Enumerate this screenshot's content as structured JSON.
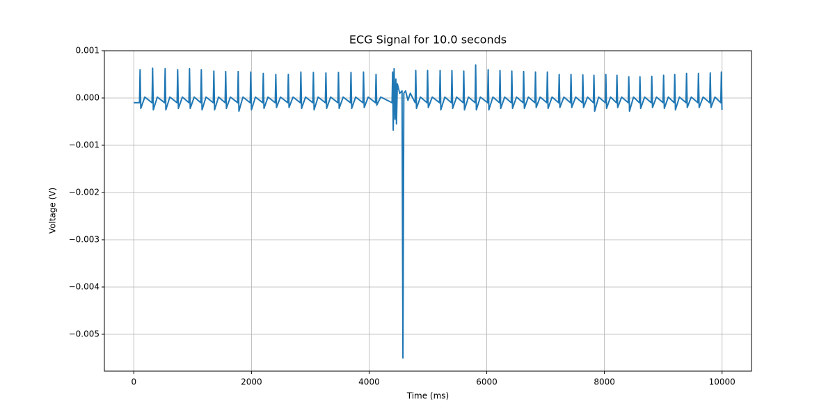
{
  "chart_data": {
    "type": "line",
    "title": "ECG Signal for 10.0 seconds",
    "xlabel": "Time (ms)",
    "ylabel": "Voltage (V)",
    "x": [
      0,
      97,
      107,
      119,
      187,
      310,
      320,
      332,
      400,
      523,
      533,
      545,
      613,
      736,
      746,
      758,
      826,
      937,
      947,
      959,
      1027,
      1138,
      1148,
      1160,
      1228,
      1351,
      1361,
      1373,
      1441,
      1552,
      1562,
      1574,
      1642,
      1765,
      1775,
      1787,
      1855,
      1978,
      1988,
      2000,
      2068,
      2191,
      2201,
      2213,
      2281,
      2404,
      2414,
      2426,
      2494,
      2617,
      2627,
      2639,
      2707,
      2830,
      2840,
      2852,
      2920,
      3043,
      3053,
      3065,
      3133,
      3256,
      3266,
      3278,
      3346,
      3469,
      3479,
      3491,
      3559,
      3682,
      3692,
      3704,
      3772,
      3895,
      3905,
      3917,
      3985,
      4108,
      4118,
      4130,
      4198,
      4390,
      4400,
      4410,
      4425,
      4440,
      4455,
      4465,
      4480,
      4520,
      4560,
      4575,
      4590,
      4620,
      4660,
      4700,
      4783,
      4793,
      4805,
      4873,
      4984,
      4994,
      5006,
      5074,
      5197,
      5207,
      5219,
      5287,
      5398,
      5408,
      5420,
      5488,
      5599,
      5609,
      5621,
      5689,
      5801,
      5811,
      5823,
      5891,
      6014,
      6024,
      6036,
      6104,
      6215,
      6225,
      6237,
      6305,
      6416,
      6426,
      6438,
      6506,
      6617,
      6627,
      6639,
      6707,
      6818,
      6828,
      6840,
      6908,
      7020,
      7030,
      7042,
      7110,
      7221,
      7231,
      7243,
      7311,
      7422,
      7432,
      7444,
      7512,
      7623,
      7633,
      7645,
      7713,
      7812,
      7822,
      7834,
      7902,
      8014,
      8024,
      8036,
      8104,
      8203,
      8213,
      8225,
      8293,
      8404,
      8414,
      8426,
      8494,
      8594,
      8604,
      8616,
      8684,
      8795,
      8805,
      8817,
      8885,
      8996,
      9006,
      9018,
      9086,
      9185,
      9195,
      9207,
      9275,
      9386,
      9396,
      9408,
      9476,
      9588,
      9598,
      9610,
      9678,
      9789,
      9799,
      9811,
      9879,
      9978,
      9988,
      9998
    ],
    "series": [
      {
        "color": "#1f77b4",
        "values": [
          -0.0001,
          -0.0001,
          0.0006,
          -0.00022,
          2e-05,
          -0.0001,
          0.00063,
          -0.00025,
          2e-05,
          -0.0001,
          0.00062,
          -0.00025,
          2e-05,
          -0.0001,
          0.0006,
          -0.00022,
          2e-05,
          -0.0001,
          0.00062,
          -0.00022,
          2e-05,
          -0.0001,
          0.0006,
          -0.00025,
          2e-05,
          -0.0001,
          0.00057,
          -0.00025,
          2e-05,
          -0.0001,
          0.00056,
          -0.00022,
          2e-05,
          -0.0001,
          0.00056,
          -0.00028,
          2e-05,
          -0.0001,
          0.00055,
          -0.00025,
          2e-05,
          -0.0001,
          0.00052,
          -0.00022,
          2e-05,
          -0.0001,
          0.0005,
          -0.0002,
          2e-05,
          -0.0001,
          0.0005,
          -0.0002,
          2e-05,
          -0.0001,
          0.00055,
          -0.00022,
          2e-05,
          -0.0001,
          0.00054,
          -0.00025,
          2e-05,
          -0.0001,
          0.00053,
          -0.00022,
          2e-05,
          -0.0001,
          0.00054,
          -0.00022,
          2e-05,
          -0.0001,
          0.00054,
          -0.00022,
          2e-05,
          -0.0001,
          0.00055,
          -0.0002,
          2e-05,
          -0.0001,
          0.0005,
          -0.00015,
          2e-05,
          -0.0001,
          0.00055,
          -0.00068,
          0.00062,
          -0.00045,
          0.0004,
          -0.00055,
          0.0003,
          0.0001,
          0.00015,
          -0.0055,
          0.0001,
          0.00015,
          -5e-05,
          0.0001,
          -0.0001,
          0.00058,
          -0.00022,
          2e-05,
          -0.0001,
          0.00058,
          -0.0002,
          2e-05,
          -0.0001,
          0.00058,
          -0.00025,
          2e-05,
          -0.0001,
          0.00058,
          -0.00022,
          2e-05,
          -0.0001,
          0.00057,
          -0.00025,
          2e-05,
          -0.0001,
          0.0007,
          -0.00025,
          2e-05,
          -0.0001,
          0.0006,
          -0.00025,
          2e-05,
          -0.0001,
          0.00058,
          -0.00022,
          2e-05,
          -0.0001,
          0.00057,
          -0.00022,
          2e-05,
          -0.0001,
          0.00056,
          -0.00022,
          2e-05,
          -0.0001,
          0.00055,
          -0.0002,
          2e-05,
          -0.0001,
          0.00055,
          -0.00022,
          2e-05,
          -0.0001,
          0.0005,
          -0.0002,
          2e-05,
          -0.0001,
          0.0005,
          -0.0002,
          2e-05,
          -0.0001,
          0.00049,
          -0.0002,
          2e-05,
          -0.0001,
          0.00048,
          -0.00028,
          2e-05,
          -0.0001,
          0.0005,
          -0.00022,
          2e-05,
          -0.0001,
          0.00048,
          -0.0002,
          2e-05,
          -0.0001,
          0.00045,
          -0.00028,
          2e-05,
          -0.0001,
          0.00045,
          -0.00022,
          2e-05,
          -0.0001,
          0.00046,
          -0.0002,
          2e-05,
          -0.0001,
          0.00048,
          -0.00022,
          2e-05,
          -0.0001,
          0.0005,
          -0.00025,
          2e-05,
          -0.0001,
          0.00052,
          -0.0002,
          2e-05,
          -0.0001,
          0.00052,
          -0.0002,
          2e-05,
          -0.0001,
          0.00053,
          -0.0002,
          2e-05,
          -0.0001,
          0.00055,
          -0.00025
        ]
      }
    ],
    "xlim": [
      -500,
      10500
    ],
    "xticks": [
      0,
      2000,
      4000,
      6000,
      8000,
      10000
    ],
    "ylim": [
      -0.00578,
      0.001
    ],
    "yticks": [
      {
        "value": -0.005,
        "label": "−0.005"
      },
      {
        "value": -0.004,
        "label": "−0.004"
      },
      {
        "value": -0.003,
        "label": "−0.003"
      },
      {
        "value": -0.002,
        "label": "−0.002"
      },
      {
        "value": -0.001,
        "label": "−0.001"
      },
      {
        "value": 0,
        "label": "0.000"
      },
      0.001
    ],
    "grid": true
  }
}
